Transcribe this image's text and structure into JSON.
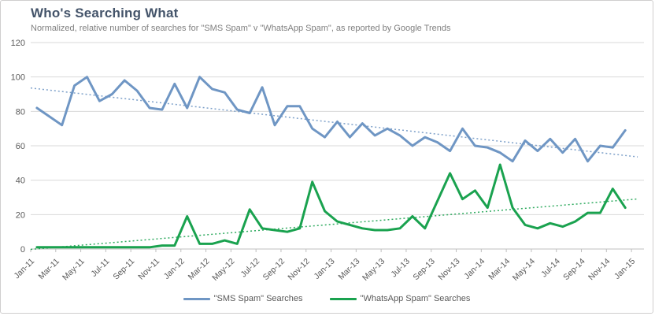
{
  "header": {
    "title": "Who's Searching What",
    "subtitle": "Normalized, relative number of searches for \"SMS Spam\" v \"WhatsApp Spam\", as reported by Google Trends"
  },
  "colors": {
    "title": "#44546a",
    "subtitle": "#7f7f7f",
    "axis_text": "#595959",
    "gridline": "#d9d9d9",
    "axis_line": "#bfbfbf",
    "border": "#d0cece",
    "background": "#ffffff",
    "sms_blue": "#6f96c4",
    "whatsapp_green": "#1aa24f"
  },
  "chart_data": {
    "type": "line",
    "title": "Who's Searching What",
    "subtitle": "Normalized, relative number of searches for \"SMS Spam\" v \"WhatsApp Spam\", as reported by Google Trends",
    "xlabel": "",
    "ylabel": "",
    "ylim": [
      0,
      120
    ],
    "yticks": [
      0,
      20,
      40,
      60,
      80,
      100,
      120
    ],
    "grid": "horizontal",
    "legend_position": "bottom",
    "x": [
      "Jan-11",
      "Feb-11",
      "Mar-11",
      "Apr-11",
      "May-11",
      "Jun-11",
      "Jul-11",
      "Aug-11",
      "Sep-11",
      "Oct-11",
      "Nov-11",
      "Dec-11",
      "Jan-12",
      "Feb-12",
      "Mar-12",
      "Apr-12",
      "May-12",
      "Jun-12",
      "Jul-12",
      "Aug-12",
      "Sep-12",
      "Oct-12",
      "Nov-12",
      "Dec-12",
      "Jan-13",
      "Feb-13",
      "Mar-13",
      "Apr-13",
      "May-13",
      "Jun-13",
      "Jul-13",
      "Aug-13",
      "Sep-13",
      "Oct-13",
      "Nov-13",
      "Dec-13",
      "Jan-14",
      "Feb-14",
      "Mar-14",
      "Apr-14",
      "May-14",
      "Jun-14",
      "Jul-14",
      "Aug-14",
      "Sep-14",
      "Oct-14",
      "Nov-14",
      "Dec-14"
    ],
    "visible_x_tick_labels": [
      "Jan-11",
      "Mar-11",
      "May-11",
      "Jul-11",
      "Sep-11",
      "Nov-11",
      "Jan-12",
      "Mar-12",
      "May-12",
      "Jul-12",
      "Sep-12",
      "Nov-12",
      "Jan-13",
      "Mar-13",
      "May-13",
      "Jul-13",
      "Sep-13",
      "Nov-13",
      "Jan-14",
      "Mar-14",
      "May-14",
      "Jul-14",
      "Sep-14",
      "Nov-14",
      "Jan-15"
    ],
    "series": [
      {
        "name": "\"SMS Spam\" Searches",
        "slug": "sms-spam",
        "color": "#6f96c4",
        "trendline": "linear-dotted",
        "values": [
          82,
          77,
          72,
          95,
          100,
          86,
          90,
          98,
          92,
          82,
          81,
          96,
          82,
          100,
          93,
          91,
          81,
          79,
          94,
          72,
          83,
          83,
          70,
          65,
          74,
          65,
          73,
          66,
          70,
          66,
          60,
          65,
          62,
          57,
          70,
          60,
          59,
          56,
          51,
          63,
          57,
          64,
          56,
          64,
          51,
          60,
          59,
          69
        ]
      },
      {
        "name": "\"WhatsApp Spam\" Searches",
        "slug": "whatsapp-spam",
        "color": "#1aa24f",
        "trendline": "linear-dotted",
        "values": [
          1,
          1,
          1,
          1,
          1,
          1,
          1,
          1,
          1,
          1,
          2,
          2,
          19,
          3,
          3,
          5,
          3,
          23,
          12,
          11,
          10,
          12,
          39,
          22,
          16,
          14,
          12,
          11,
          11,
          12,
          19,
          12,
          28,
          44,
          29,
          34,
          24,
          49,
          24,
          14,
          12,
          15,
          13,
          16,
          21,
          21,
          35,
          24
        ]
      }
    ]
  }
}
